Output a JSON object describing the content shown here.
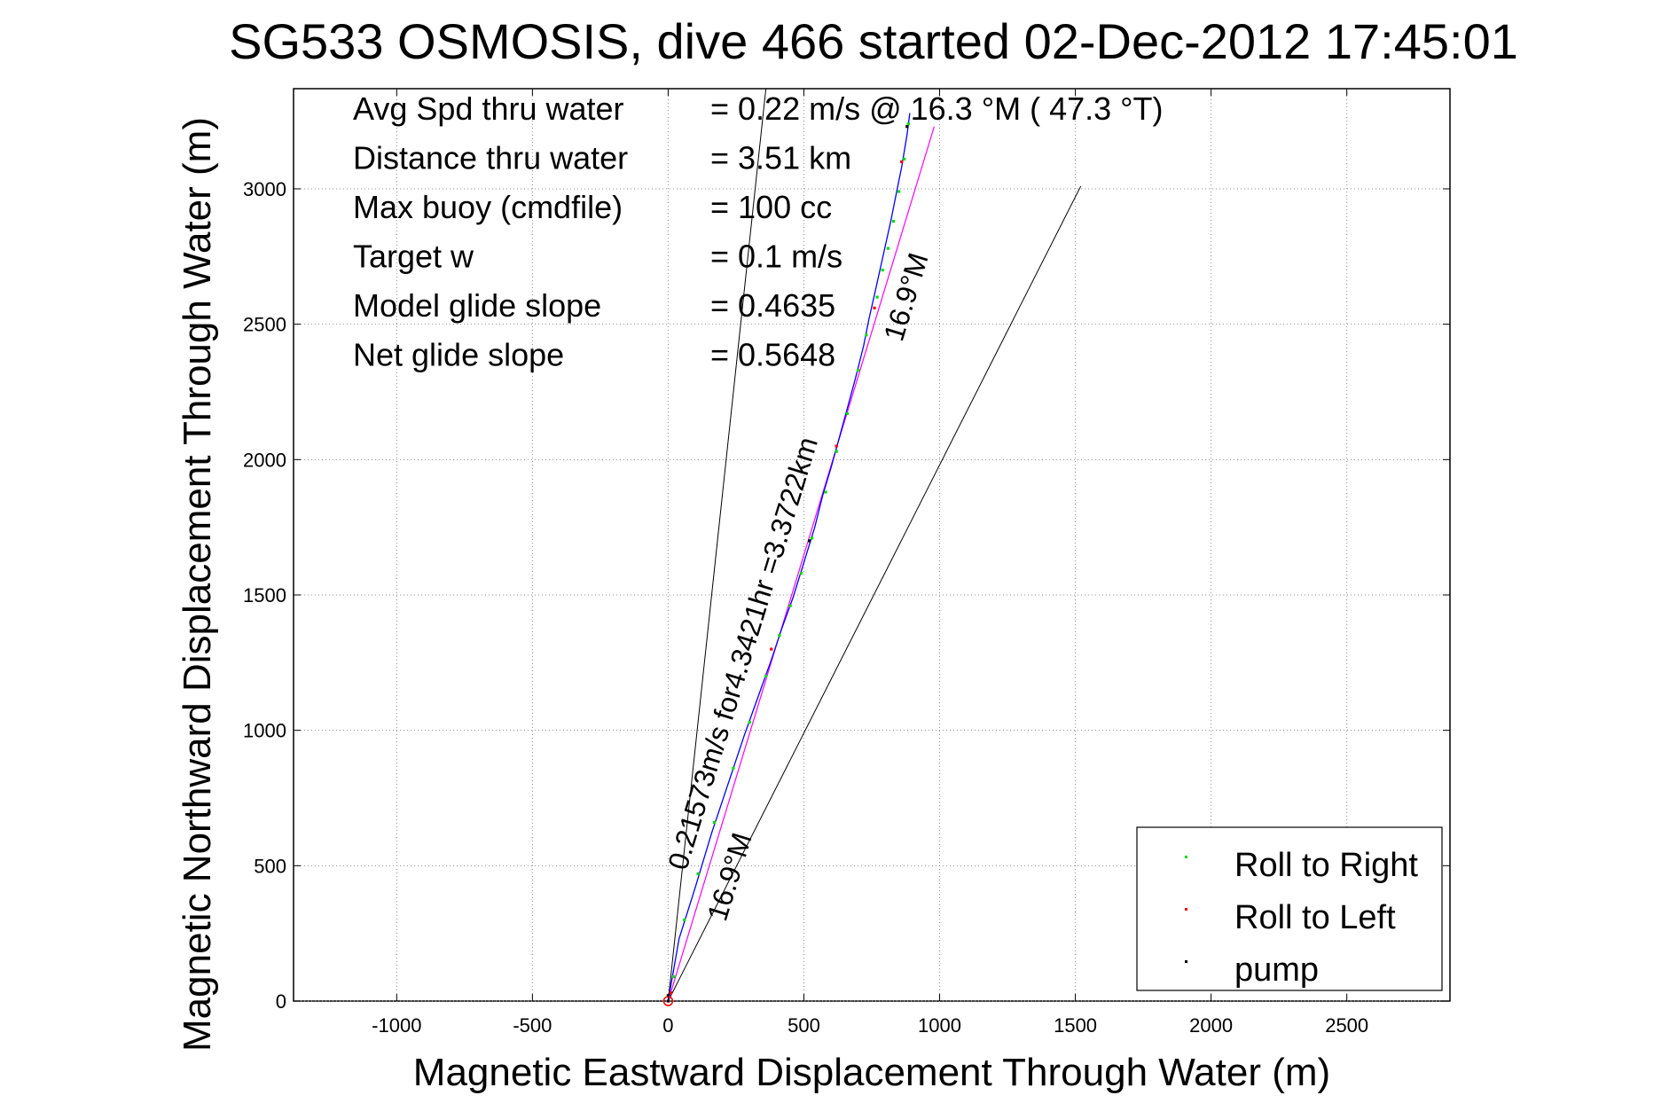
{
  "chart_data": {
    "type": "line",
    "title": "SG533 OSMOSIS, dive 466 started 02-Dec-2012 17:45:01",
    "xlabel": "Magnetic Eastward Displacement Through Water (m)",
    "ylabel": "Magnetic Northward Displacement Through Water (m)",
    "xlim": [
      -1380,
      2880
    ],
    "ylim": [
      0,
      3370
    ],
    "xticks": [
      -1000,
      -500,
      0,
      500,
      1000,
      1500,
      2000,
      2500
    ],
    "yticks": [
      0,
      500,
      1000,
      1500,
      2000,
      2500,
      3000
    ],
    "xtick_labels": [
      "-1000",
      "-500",
      "0",
      "500",
      "1000",
      "1500",
      "2000",
      "2500"
    ],
    "ytick_labels": [
      "0",
      "500",
      "1000",
      "1500",
      "2000",
      "2500",
      "3000"
    ],
    "grid": true,
    "legend_position": "bottom-right",
    "stats": [
      {
        "label": "Avg Spd thru water",
        "value": "=  0.22 m/s @  16.3 °M ( 47.3 °T)"
      },
      {
        "label": "Distance thru water",
        "value": "=  3.51 km"
      },
      {
        "label": "Max buoy (cmdfile)",
        "value": "= 100 cc"
      },
      {
        "label": "Target w",
        "value": "= 0.1 m/s"
      },
      {
        "label": "Model glide slope",
        "value": "= 0.4635"
      },
      {
        "label": "Net glide slope",
        "value": "= 0.5648"
      }
    ],
    "annotations": {
      "speed_label": "0.21573m/s for4.3421hr =3.3722km",
      "heading_label_upper": "16.9°M",
      "heading_label_lower": "16.9°M"
    },
    "legend": [
      "Roll to Right",
      "Roll to Left",
      "pump"
    ],
    "colors": {
      "track": "#0000ff",
      "roll_right": "#00dd00",
      "roll_left": "#ff0000",
      "pump": "#000000",
      "heading_line": "#ff00ff",
      "reference_lines": "#000000"
    },
    "series": [
      {
        "name": "track",
        "color": "#0000ff",
        "x": [
          0,
          40,
          100,
          160,
          220,
          280,
          330,
          380,
          420,
          460,
          500,
          540,
          570,
          600,
          630,
          660,
          690,
          720,
          740,
          760,
          780,
          800,
          820,
          840,
          860,
          880,
          890
        ],
        "y": [
          0,
          230,
          420,
          620,
          800,
          980,
          1120,
          1260,
          1380,
          1490,
          1620,
          1750,
          1870,
          1970,
          2080,
          2190,
          2300,
          2420,
          2520,
          2610,
          2700,
          2790,
          2880,
          2980,
          3080,
          3200,
          3280
        ]
      }
    ],
    "roll_right_points": {
      "x": [
        20,
        60,
        110,
        170,
        240,
        300,
        360,
        410,
        450,
        490,
        530,
        580,
        620,
        660,
        700,
        730,
        770,
        790,
        810,
        830,
        850,
        870,
        885
      ],
      "y": [
        90,
        300,
        470,
        660,
        860,
        1030,
        1200,
        1350,
        1460,
        1580,
        1710,
        1880,
        2030,
        2170,
        2330,
        2460,
        2600,
        2700,
        2780,
        2880,
        2990,
        3110,
        3240
      ]
    },
    "roll_left_points": {
      "x": [
        10,
        380,
        620,
        760,
        860
      ],
      "y": [
        30,
        1300,
        2050,
        2560,
        3100
      ]
    },
    "pump_points": {
      "x": [
        0,
        0,
        520,
        880
      ],
      "y": [
        0,
        20,
        1700,
        3230
      ]
    },
    "heading_line": {
      "name": "16.9°M",
      "x": [
        0,
        980
      ],
      "y": [
        0,
        3230
      ]
    },
    "reference_lines": [
      {
        "x": [
          0,
          360
        ],
        "y": [
          0,
          3370
        ]
      },
      {
        "x": [
          0,
          1520
        ],
        "y": [
          0,
          3010
        ]
      }
    ]
  }
}
